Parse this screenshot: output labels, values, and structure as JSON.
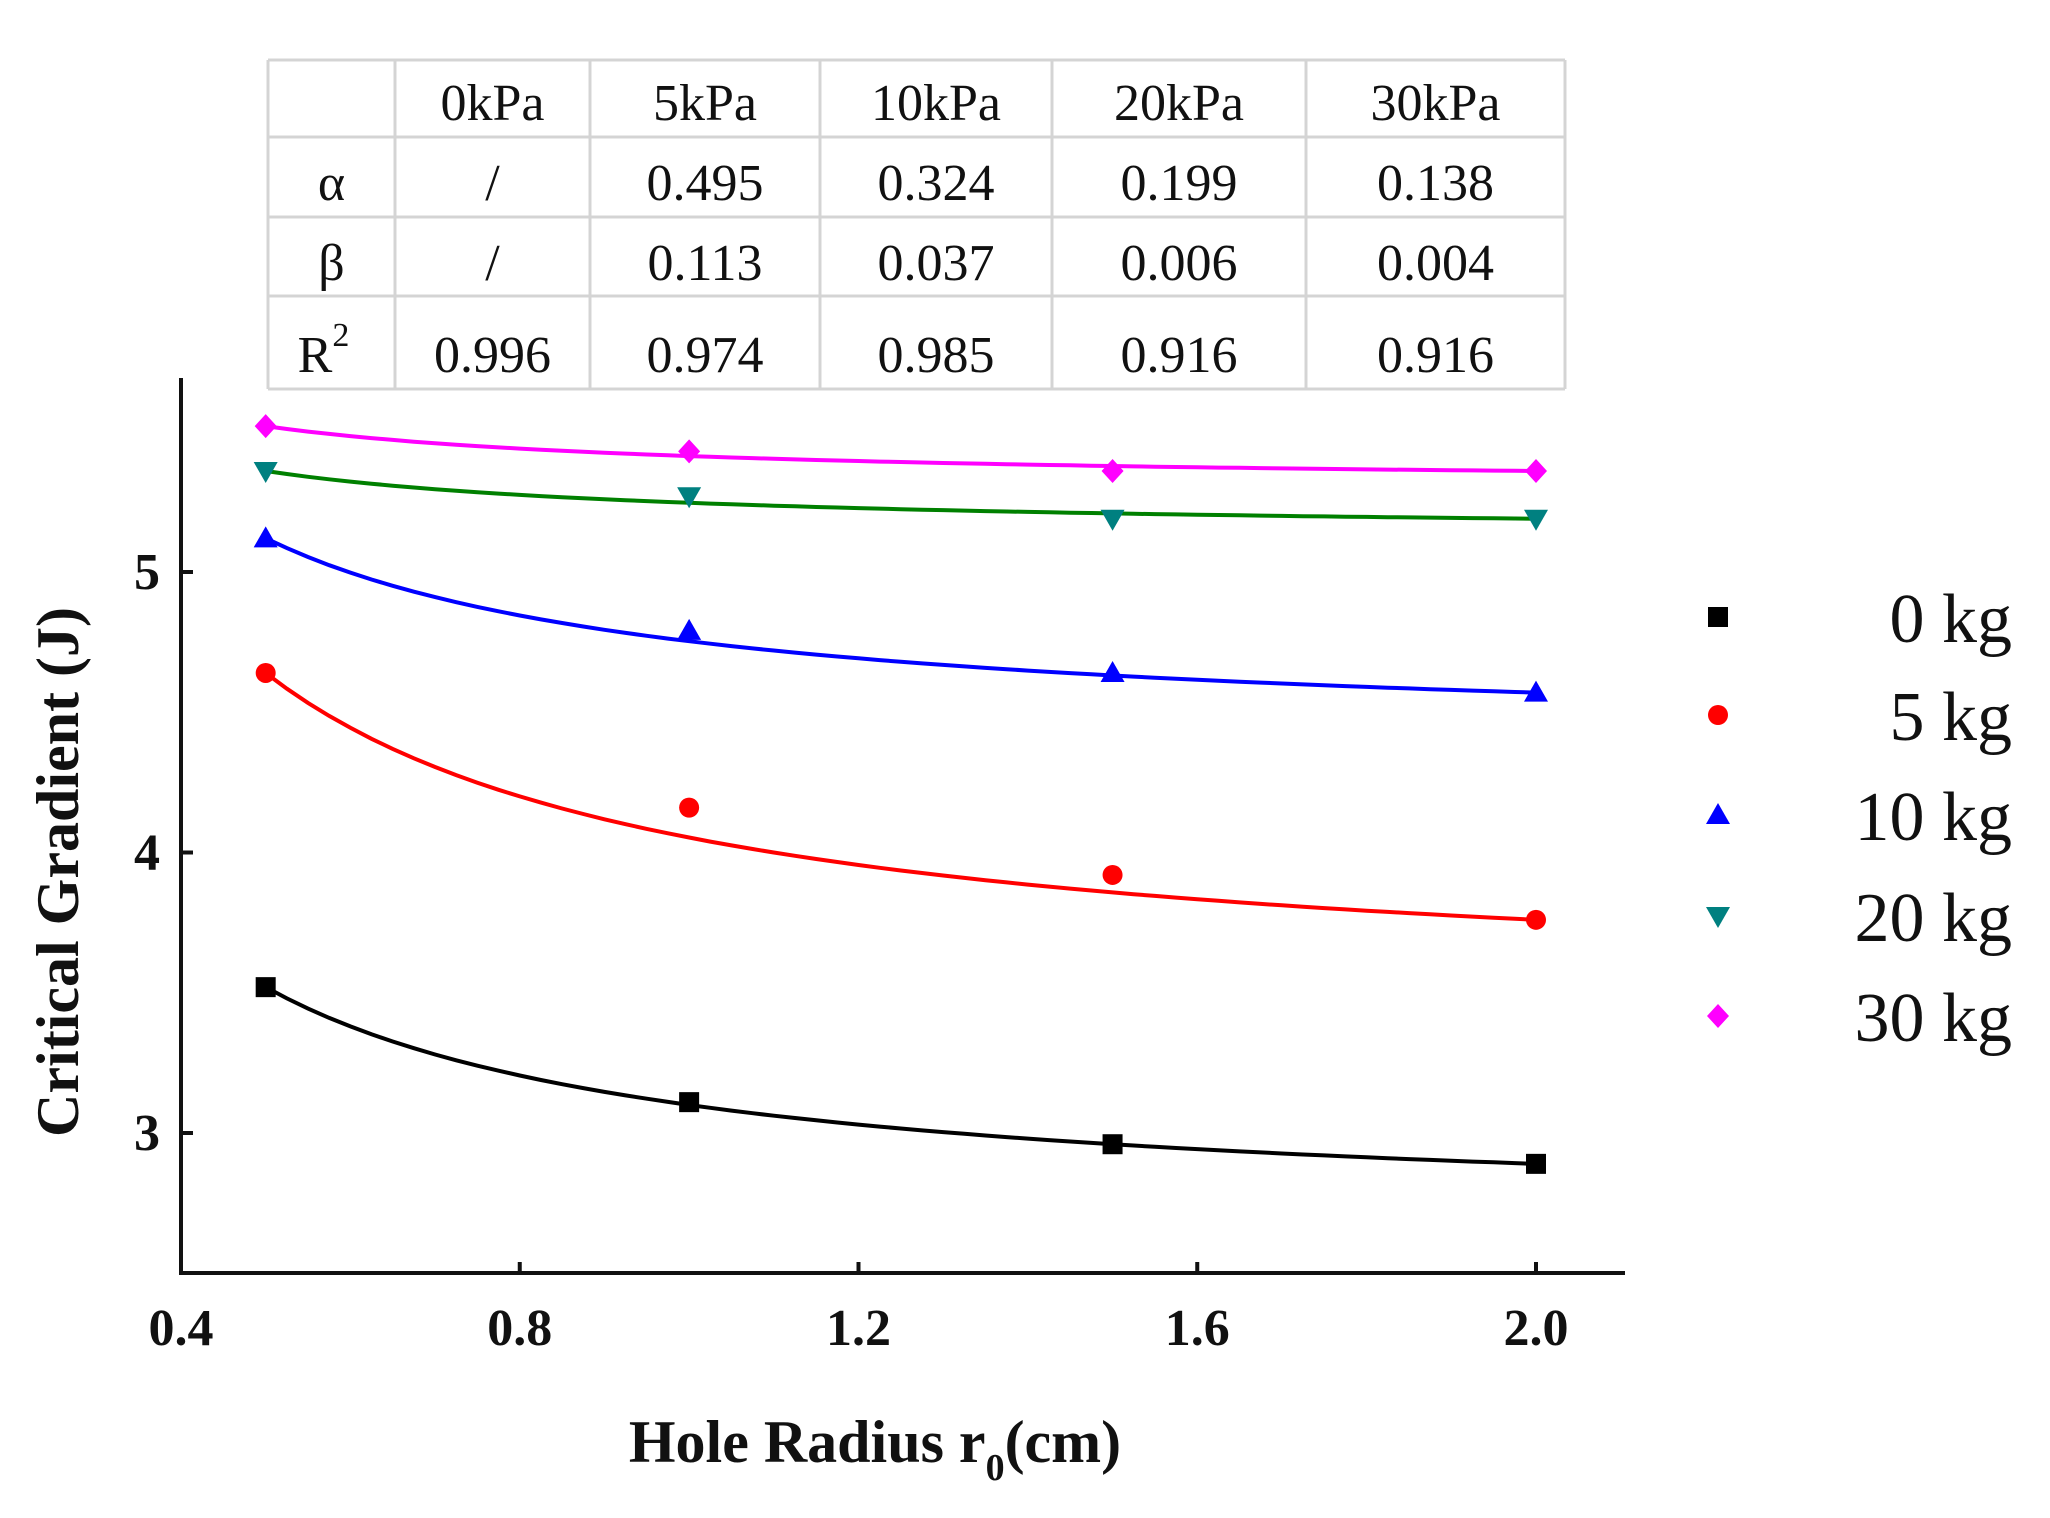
{
  "chart_data": {
    "type": "line",
    "title": "",
    "xlabel": "Hole Radius r",
    "xlabel_sub": "0",
    "xlabel_suffix": "(cm)",
    "ylabel": "Critical Gradient (J)",
    "xlim": [
      0.4,
      2.1
    ],
    "ylim": [
      2.5,
      5.7
    ],
    "xticks": [
      "0.4",
      "0.8",
      "1.2",
      "1.6",
      "2.0"
    ],
    "yticks": [
      "3",
      "4",
      "5"
    ],
    "x": [
      0.5,
      1.0,
      1.5,
      2.0
    ],
    "series": [
      {
        "name": "0 kg",
        "marker": "square",
        "color": "#000000",
        "values": [
          3.52,
          3.11,
          2.96,
          2.89
        ]
      },
      {
        "name": "5 kg",
        "marker": "circle",
        "color": "#ff0000",
        "values": [
          4.64,
          4.16,
          3.92,
          3.76
        ]
      },
      {
        "name": "10 kg",
        "marker": "triangle-up",
        "color": "#0000ff",
        "values": [
          5.12,
          4.79,
          4.64,
          4.57
        ]
      },
      {
        "name": "20 kg",
        "marker": "triangle-down",
        "color": "#008080",
        "values": [
          5.36,
          5.27,
          5.19,
          5.19
        ]
      },
      {
        "name": "30 kg",
        "marker": "diamond",
        "color": "#ff00ff",
        "values": [
          5.52,
          5.43,
          5.36,
          5.36
        ]
      }
    ],
    "fit_color_20kg": "#008000",
    "legend_position": "right"
  },
  "fit_table": {
    "header": [
      "",
      "0kPa",
      "5kPa",
      "10kPa",
      "20kPa",
      "30kPa"
    ],
    "rows": [
      {
        "label": "α",
        "sup": "",
        "values": [
          "/",
          "0.495",
          "0.324",
          "0.199",
          "0.138"
        ]
      },
      {
        "label": "β",
        "sup": "",
        "values": [
          "/",
          "0.113",
          "0.037",
          "0.006",
          "0.004"
        ]
      },
      {
        "label": "R",
        "sup": "2",
        "values": [
          "0.996",
          "0.974",
          "0.985",
          "0.916",
          "0.916"
        ]
      }
    ]
  }
}
